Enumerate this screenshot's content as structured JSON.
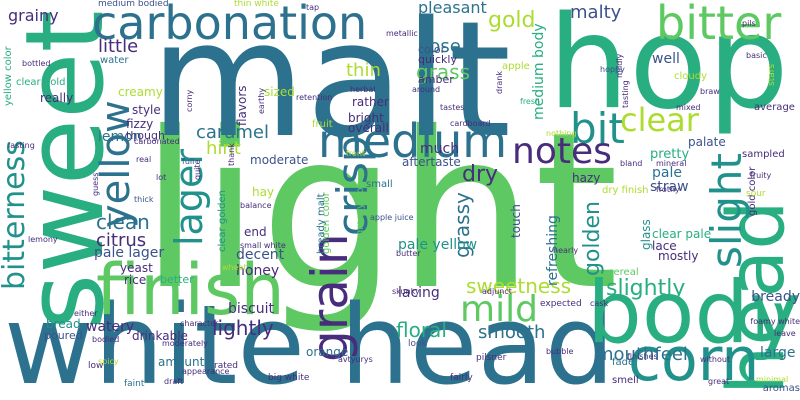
{
  "colors": {
    "background": "#ffffff",
    "palette": [
      "#440154",
      "#472d7b",
      "#3b528b",
      "#2c728e",
      "#21918c",
      "#28ae80",
      "#5ec962",
      "#addc30",
      "#fde725"
    ]
  },
  "words": [
    {
      "text": "light",
      "c": "#5ec962"
    },
    {
      "text": "malt",
      "c": "#2c728e"
    },
    {
      "text": "white head",
      "c": "#2c728e"
    },
    {
      "text": "hop",
      "c": "#28ae80"
    },
    {
      "text": "sweet",
      "c": "#28ae80"
    },
    {
      "text": "body",
      "c": "#28ae80"
    },
    {
      "text": "head",
      "c": "#28ae80"
    },
    {
      "text": "finish",
      "c": "#5ec962"
    },
    {
      "text": "carbonation",
      "c": "#2c728e"
    },
    {
      "text": "bitter",
      "c": "#5ec962"
    },
    {
      "text": "corn",
      "c": "#21918c"
    },
    {
      "text": "medium",
      "c": "#2c728e"
    },
    {
      "text": "bit",
      "c": "#21918c"
    },
    {
      "text": "clear",
      "c": "#addc30"
    },
    {
      "text": "notes",
      "c": "#472d7b"
    },
    {
      "text": "yellow",
      "c": "#2c728e"
    },
    {
      "text": "lager",
      "c": "#21918c"
    },
    {
      "text": "crisp",
      "c": "#2c728e"
    },
    {
      "text": "mild",
      "c": "#5ec962"
    },
    {
      "text": "grain",
      "c": "#472d7b"
    },
    {
      "text": "slight",
      "c": "#21918c"
    },
    {
      "text": "bitterness",
      "c": "#21918c"
    },
    {
      "text": "sweetness",
      "c": "#addc30"
    },
    {
      "text": "slightly",
      "c": "#28ae80"
    },
    {
      "text": "mouthfeel",
      "c": "#2c728e"
    },
    {
      "text": "dry",
      "c": "#472d7b"
    },
    {
      "text": "grass",
      "c": "#5ec962"
    },
    {
      "text": "caramel",
      "c": "#2c728e"
    },
    {
      "text": "clean",
      "c": "#2c728e"
    },
    {
      "text": "citrus",
      "c": "#472d7b"
    },
    {
      "text": "lightly",
      "c": "#472d7b"
    },
    {
      "text": "floral",
      "c": "#28ae80"
    },
    {
      "text": "smooth",
      "c": "#2c728e"
    },
    {
      "text": "gold",
      "c": "#addc30"
    },
    {
      "text": "thin",
      "c": "#addc30"
    },
    {
      "text": "nose",
      "c": "#2c728e"
    },
    {
      "text": "little",
      "c": "#472d7b"
    },
    {
      "text": "grainy",
      "c": "#472d7b"
    },
    {
      "text": "malty",
      "c": "#3b528b"
    },
    {
      "text": "hint",
      "c": "#addc30"
    },
    {
      "text": "much",
      "c": "#472d7b"
    },
    {
      "text": "golden",
      "c": "#21918c"
    },
    {
      "text": "grassy",
      "c": "#2c728e"
    },
    {
      "text": "lacing",
      "c": "#472d7b"
    },
    {
      "text": "pale yellow",
      "c": "#21918c"
    },
    {
      "text": "refreshing",
      "c": "#2c728e"
    },
    {
      "text": "pleasant",
      "c": "#2c728e"
    },
    {
      "text": "medium body",
      "c": "#28ae80"
    },
    {
      "text": "well",
      "c": "#3b528b"
    },
    {
      "text": "pale",
      "c": "#2c728e"
    },
    {
      "text": "straw",
      "c": "#3b528b"
    },
    {
      "text": "lemon",
      "c": "#2c728e"
    },
    {
      "text": "pale lager",
      "c": "#3b528b"
    },
    {
      "text": "watery",
      "c": "#472d7b"
    },
    {
      "text": "decent",
      "c": "#3b528b"
    },
    {
      "text": "honey",
      "c": "#472d7b"
    },
    {
      "text": "biscuit",
      "c": "#472d7b"
    },
    {
      "text": "bready",
      "c": "#3b528b"
    },
    {
      "text": "large",
      "c": "#2c728e"
    },
    {
      "text": "hazy",
      "c": "#472d7b"
    },
    {
      "text": "pretty",
      "c": "#28ae80"
    },
    {
      "text": "glass",
      "c": "#21918c"
    },
    {
      "text": "clear pale",
      "c": "#28ae80"
    },
    {
      "text": "lace",
      "c": "#472d7b"
    },
    {
      "text": "mostly",
      "c": "#472d7b"
    },
    {
      "text": "aftertaste",
      "c": "#3b528b"
    },
    {
      "text": "moderate",
      "c": "#3b528b"
    },
    {
      "text": "really",
      "c": "#472d7b"
    },
    {
      "text": "creamy",
      "c": "#addc30"
    },
    {
      "text": "style",
      "c": "#472d7b"
    },
    {
      "text": "fizzy",
      "c": "#472d7b"
    },
    {
      "text": "flavors",
      "c": "#472d7b"
    },
    {
      "text": "sized",
      "c": "#addc30"
    },
    {
      "text": "rather",
      "c": "#472d7b"
    },
    {
      "text": "bright",
      "c": "#472d7b"
    },
    {
      "text": "overall",
      "c": "#472d7b"
    },
    {
      "text": "amber",
      "c": "#472d7b"
    },
    {
      "text": "color",
      "c": "#3b528b"
    },
    {
      "text": "quickly",
      "c": "#472d7b"
    },
    {
      "text": "end",
      "c": "#472d7b"
    },
    {
      "text": "yeast",
      "c": "#472d7b"
    },
    {
      "text": "rice",
      "c": "#472d7b"
    },
    {
      "text": "better",
      "c": "#28ae80"
    },
    {
      "text": "drinkable",
      "c": "#472d7b"
    },
    {
      "text": "amount",
      "c": "#2c728e"
    },
    {
      "text": "bread",
      "c": "#21918c"
    },
    {
      "text": "poured",
      "c": "#3b528b"
    },
    {
      "text": "orange",
      "c": "#2c728e"
    },
    {
      "text": "hay",
      "c": "#addc30"
    },
    {
      "text": "palate",
      "c": "#3b528b"
    },
    {
      "text": "though",
      "c": "#472d7b"
    },
    {
      "text": "medium bodied",
      "c": "#3b528b"
    },
    {
      "text": "thin white",
      "c": "#addc30"
    },
    {
      "text": "fruit",
      "c": "#addc30"
    },
    {
      "text": "touch",
      "c": "#3b528b"
    },
    {
      "text": "yellow color",
      "c": "#28ae80"
    },
    {
      "text": "clear gold",
      "c": "#28ae80"
    },
    {
      "text": "water",
      "c": "#2c728e"
    },
    {
      "text": "grassy hop",
      "c": "#5ec962"
    },
    {
      "text": "golden color",
      "c": "#5ec962"
    },
    {
      "text": "bready malt",
      "c": "#2c728e"
    },
    {
      "text": "clear golden",
      "c": "#21918c"
    },
    {
      "text": "gold color",
      "c": "#472d7b"
    },
    {
      "text": "small",
      "c": "#2c728e"
    },
    {
      "text": "dry finish",
      "c": "#addc30"
    },
    {
      "text": "cereal",
      "c": "#5ec962"
    },
    {
      "text": "fade",
      "c": "#2c728e"
    },
    {
      "text": "smell",
      "c": "#472d7b"
    },
    {
      "text": "aromas",
      "c": "#3b528b"
    },
    {
      "text": "sampled",
      "c": "#472d7b"
    },
    {
      "text": "average",
      "c": "#472d7b"
    },
    {
      "text": "cloudy",
      "c": "#addc30"
    },
    {
      "text": "apple",
      "c": "#addc30"
    },
    {
      "text": "nothing",
      "c": "#addc30"
    },
    {
      "text": "cardboard",
      "c": "#472d7b"
    },
    {
      "text": "thick",
      "c": "#3b528b"
    },
    {
      "text": "lot",
      "c": "#472d7b"
    },
    {
      "text": "full",
      "c": "#3b528b"
    },
    {
      "text": "quite",
      "c": "#472d7b"
    },
    {
      "text": "thank",
      "c": "#472d7b"
    },
    {
      "text": "balance",
      "c": "#472d7b"
    },
    {
      "text": "small white",
      "c": "#472d7b"
    },
    {
      "text": "wheat",
      "c": "#addc30"
    },
    {
      "text": "expected",
      "c": "#472d7b"
    },
    {
      "text": "pilsner",
      "c": "#472d7b"
    },
    {
      "text": "low",
      "c": "#472d7b"
    },
    {
      "text": "faint",
      "c": "#2c728e"
    },
    {
      "text": "rated",
      "c": "#472d7b"
    },
    {
      "text": "big white",
      "c": "#472d7b"
    },
    {
      "text": "look",
      "c": "#3b528b"
    },
    {
      "text": "fairly",
      "c": "#472d7b"
    },
    {
      "text": "great",
      "c": "#472d7b"
    },
    {
      "text": "minimal",
      "c": "#addc30"
    },
    {
      "text": "bland",
      "c": "#472d7b"
    },
    {
      "text": "frothy",
      "c": "#472d7b"
    },
    {
      "text": "mineral",
      "c": "#472d7b"
    },
    {
      "text": "fruity",
      "c": "#472d7b"
    },
    {
      "text": "sour",
      "c": "#addc30"
    },
    {
      "text": "hoppy",
      "c": "#3b528b"
    },
    {
      "text": "mildly",
      "c": "#472d7b"
    },
    {
      "text": "stars",
      "c": "#addc30"
    },
    {
      "text": "tasting",
      "c": "#472d7b"
    },
    {
      "text": "braw",
      "c": "#472d7b"
    },
    {
      "text": "mixed",
      "c": "#472d7b"
    },
    {
      "text": "fresh",
      "c": "#28ae80"
    },
    {
      "text": "drank",
      "c": "#472d7b"
    },
    {
      "text": "tastes",
      "c": "#472d7b"
    },
    {
      "text": "around",
      "c": "#472d7b"
    },
    {
      "text": "metallic",
      "c": "#472d7b"
    },
    {
      "text": "herbal",
      "c": "#472d7b"
    },
    {
      "text": "earthy",
      "c": "#472d7b"
    },
    {
      "text": "retention",
      "c": "#472d7b"
    },
    {
      "text": "front",
      "c": "#addc30"
    },
    {
      "text": "apple juice",
      "c": "#3b528b"
    },
    {
      "text": "butter",
      "c": "#472d7b"
    },
    {
      "text": "adjunct",
      "c": "#472d7b"
    },
    {
      "text": "skunky",
      "c": "#472d7b"
    },
    {
      "text": "avtyurys",
      "c": "#472d7b"
    },
    {
      "text": "draft",
      "c": "#472d7b"
    },
    {
      "text": "spicy",
      "c": "#addc30"
    },
    {
      "text": "either",
      "c": "#472d7b"
    },
    {
      "text": "bottled",
      "c": "#472d7b"
    },
    {
      "text": "lasting",
      "c": "#472d7b"
    },
    {
      "text": "carbonated",
      "c": "#472d7b"
    },
    {
      "text": "real",
      "c": "#472d7b"
    },
    {
      "text": "bodied",
      "c": "#472d7b"
    },
    {
      "text": "lemony",
      "c": "#472d7b"
    },
    {
      "text": "tap",
      "c": "#472d7b"
    },
    {
      "text": "pils",
      "c": "#472d7b"
    },
    {
      "text": "basic",
      "c": "#472d7b"
    },
    {
      "text": "foamy white",
      "c": "#472d7b"
    },
    {
      "text": "leave",
      "c": "#472d7b"
    },
    {
      "text": "without",
      "c": "#472d7b"
    },
    {
      "text": "bubble",
      "c": "#472d7b"
    },
    {
      "text": "character",
      "c": "#472d7b"
    },
    {
      "text": "moderately",
      "c": "#472d7b"
    },
    {
      "text": "appearance",
      "c": "#472d7b"
    },
    {
      "text": "corny",
      "c": "#472d7b"
    },
    {
      "text": "guess",
      "c": "#472d7b"
    },
    {
      "text": "nearly",
      "c": "#472d7b"
    },
    {
      "text": "cask",
      "c": "#472d7b"
    },
    {
      "text": "finishes",
      "c": "#472d7b"
    }
  ]
}
